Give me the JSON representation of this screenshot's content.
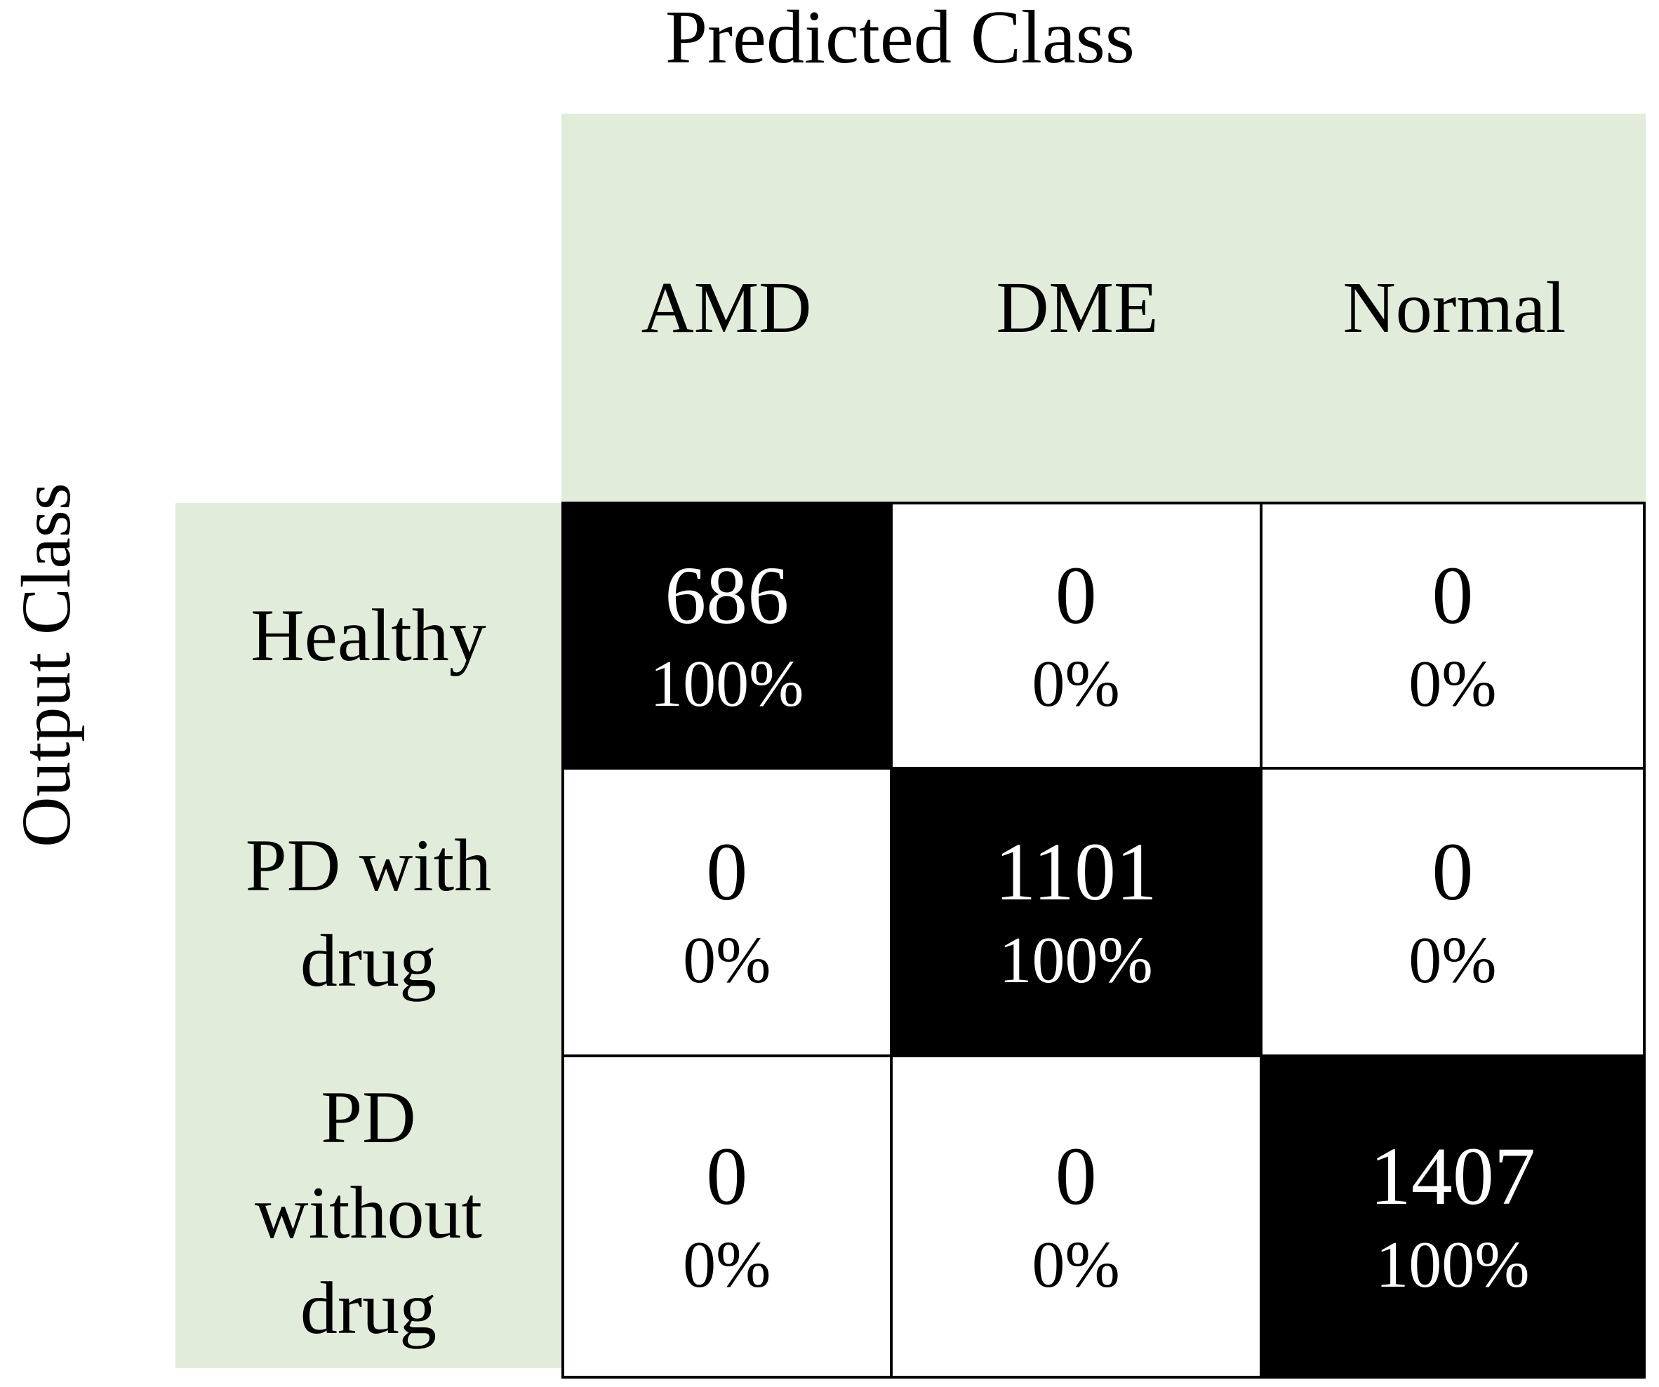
{
  "header": {
    "title": "Predicted Class"
  },
  "axes": {
    "output_class_label": "Output Class"
  },
  "columns": {
    "labels": [
      "AMD",
      "DME",
      "Normal"
    ]
  },
  "rows": {
    "labels": [
      "Healthy",
      "PD with\ndrug",
      "PD\nwithout\ndrug"
    ]
  },
  "cells": [
    [
      {
        "count": "686",
        "percent": "100%"
      },
      {
        "count": "0",
        "percent": "0%"
      },
      {
        "count": "0",
        "percent": "0%"
      }
    ],
    [
      {
        "count": "0",
        "percent": "0%"
      },
      {
        "count": "1101",
        "percent": "100%"
      },
      {
        "count": "0",
        "percent": "0%"
      }
    ],
    [
      {
        "count": "0",
        "percent": "0%"
      },
      {
        "count": "0",
        "percent": "0%"
      },
      {
        "count": "1407",
        "percent": "100%"
      }
    ]
  ],
  "colors": {
    "header_bg": "#e2ecda",
    "diagonal_bg": "#000000",
    "diagonal_text": "#ffffff",
    "offdiag_bg": "#ffffff",
    "offdiag_text": "#000000",
    "border": "#000000"
  },
  "chart_data": {
    "type": "heatmap",
    "subtype": "confusion-matrix",
    "x_axis_title": "Predicted Class",
    "y_axis_title": "Output Class",
    "x_categories": [
      "AMD",
      "DME",
      "Normal"
    ],
    "y_categories": [
      "Healthy",
      "PD with drug",
      "PD without drug"
    ],
    "values": [
      [
        686,
        0,
        0
      ],
      [
        0,
        1101,
        0
      ],
      [
        0,
        0,
        1407
      ]
    ],
    "percentages": [
      [
        100,
        0,
        0
      ],
      [
        0,
        100,
        0
      ],
      [
        0,
        0,
        100
      ]
    ],
    "highlighted_cells": "diagonal",
    "legend": "none",
    "grid": "on"
  }
}
